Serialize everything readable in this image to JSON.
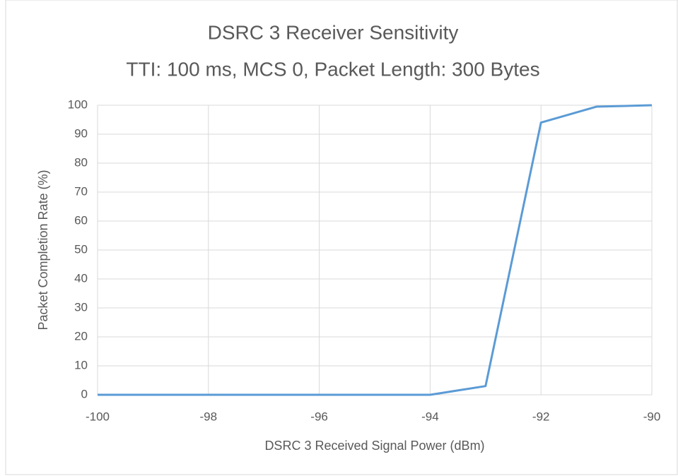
{
  "chart_data": {
    "type": "line",
    "title": "DSRC 3 Receiver Sensitivity",
    "subtitle": "TTI: 100 ms, MCS 0, Packet Length: 300 Bytes",
    "x_label": "DSRC 3 Received Signal Power (dBm)",
    "y_label": "Packet Completion Rate (%)",
    "x": [
      -100,
      -99,
      -98,
      -97,
      -96,
      -95,
      -94,
      -93,
      -92,
      -91,
      -90
    ],
    "series": [
      {
        "name": "Packet Completion Rate",
        "color": "#5b9bd5",
        "values": [
          0,
          0,
          0,
          0,
          0,
          0,
          0,
          3,
          94,
          99.5,
          100
        ]
      }
    ],
    "xlim": [
      -100,
      -90
    ],
    "xticks": [
      -100,
      -98,
      -96,
      -94,
      -92,
      -90
    ],
    "ylim": [
      0,
      100
    ],
    "yticks": [
      0,
      10,
      20,
      30,
      40,
      50,
      60,
      70,
      80,
      90,
      100
    ],
    "grid": true
  }
}
